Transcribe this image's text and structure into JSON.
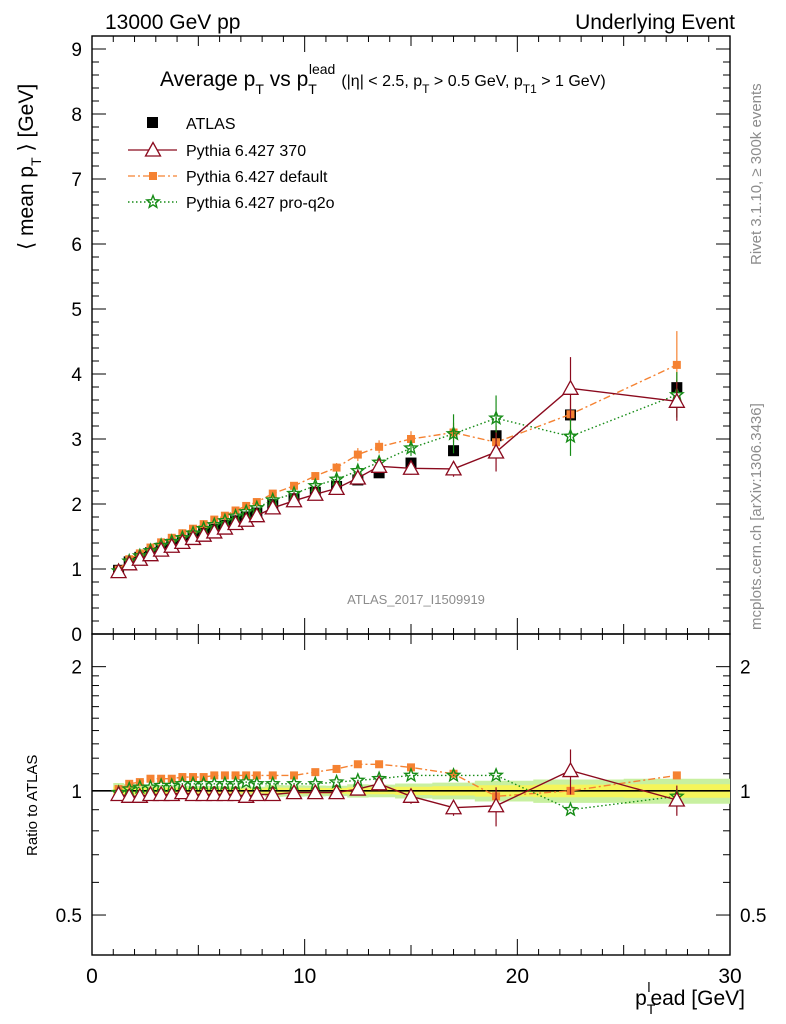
{
  "header": {
    "left": "13000 GeV pp",
    "right": "Underlying Event"
  },
  "title": {
    "main": "Average p",
    "main_sub": "T",
    "vs": " vs p",
    "vs_sub": "T",
    "vs_sup": "lead",
    "cuts": "(|η| < 2.5, p",
    "cuts_sub1": "T",
    "cuts_mid": " > 0.5 GeV, p",
    "cuts_sub2": "T1",
    "cuts_end": " > 1 GeV)"
  },
  "side_labels": {
    "rivet": "Rivet 3.1.10, ≥ 300k events",
    "mcplots": "mcplots.cern.ch [arXiv:1306.3436]"
  },
  "analysis_id": "ATLAS_2017_I1509919",
  "colors": {
    "atlas": "#000000",
    "p370": "#8b0a1e",
    "default": "#f58232",
    "proq2o": "#178c17",
    "band_inner": "#f5f55a",
    "band_outer": "#c8f0a0"
  },
  "chart_data": {
    "type": "scatter",
    "x": [
      1.25,
      1.75,
      2.25,
      2.75,
      3.25,
      3.75,
      4.25,
      4.75,
      5.25,
      5.75,
      6.25,
      6.75,
      7.25,
      7.75,
      8.5,
      9.5,
      10.5,
      11.5,
      12.5,
      13.5,
      15.0,
      17.0,
      19.0,
      22.5,
      27.5
    ],
    "xlabel": "p",
    "xlabel_sub": "T",
    "xlabel_sup": "l",
    "xlabel_rest": "ead [GeV]",
    "xlim": [
      0,
      30
    ],
    "x_ticks": [
      "0",
      "10",
      "20",
      "30"
    ],
    "main": {
      "ylabel": "⟨ mean p",
      "ylabel_sub": "T",
      "ylabel_rest": " ⟩ [GeV]",
      "ylim": [
        0,
        9.2
      ],
      "y_ticks": [
        "0",
        "1",
        "2",
        "3",
        "4",
        "5",
        "6",
        "7",
        "8",
        "9"
      ],
      "series": [
        {
          "name": "ATLAS",
          "marker": "square",
          "values": [
            0.98,
            1.11,
            1.18,
            1.25,
            1.32,
            1.38,
            1.43,
            1.5,
            1.56,
            1.61,
            1.67,
            1.74,
            1.8,
            1.86,
            1.99,
            2.08,
            2.18,
            2.27,
            2.37,
            2.48,
            2.63,
            2.82,
            3.05,
            3.37,
            3.79
          ],
          "err": [
            0.02,
            0.02,
            0.02,
            0.02,
            0.02,
            0.02,
            0.02,
            0.02,
            0.02,
            0.02,
            0.02,
            0.02,
            0.02,
            0.02,
            0.03,
            0.03,
            0.03,
            0.03,
            0.04,
            0.04,
            0.05,
            0.06,
            0.08,
            0.1,
            0.12
          ]
        },
        {
          "name": "Pythia 6.427 370",
          "marker": "open-triangle",
          "values": [
            0.96,
            1.08,
            1.15,
            1.22,
            1.29,
            1.35,
            1.41,
            1.47,
            1.52,
            1.57,
            1.63,
            1.7,
            1.75,
            1.82,
            1.94,
            2.05,
            2.15,
            2.24,
            2.4,
            2.58,
            2.55,
            2.54,
            2.8,
            3.78,
            3.58
          ],
          "err": [
            0.02,
            0.02,
            0.02,
            0.02,
            0.02,
            0.02,
            0.02,
            0.02,
            0.02,
            0.02,
            0.02,
            0.02,
            0.03,
            0.03,
            0.04,
            0.05,
            0.06,
            0.07,
            0.08,
            0.1,
            0.1,
            0.12,
            0.3,
            0.48,
            0.3
          ]
        },
        {
          "name": "Pythia 6.427 default",
          "marker": "filled-square-small",
          "values": [
            0.99,
            1.15,
            1.24,
            1.33,
            1.41,
            1.48,
            1.55,
            1.62,
            1.69,
            1.76,
            1.82,
            1.9,
            1.97,
            2.03,
            2.16,
            2.28,
            2.43,
            2.56,
            2.76,
            2.88,
            3.0,
            3.1,
            2.95,
            3.38,
            4.14
          ],
          "err": [
            0.02,
            0.02,
            0.02,
            0.02,
            0.02,
            0.02,
            0.02,
            0.02,
            0.02,
            0.02,
            0.03,
            0.03,
            0.03,
            0.03,
            0.04,
            0.05,
            0.06,
            0.07,
            0.1,
            0.1,
            0.12,
            0.15,
            0.25,
            0.25,
            0.52
          ]
        },
        {
          "name": "Pythia 6.427 pro-q2o",
          "marker": "star",
          "values": [
            0.97,
            1.12,
            1.2,
            1.28,
            1.36,
            1.42,
            1.48,
            1.55,
            1.62,
            1.68,
            1.74,
            1.81,
            1.88,
            1.94,
            2.06,
            2.16,
            2.28,
            2.38,
            2.51,
            2.64,
            2.86,
            3.08,
            3.32,
            3.04,
            3.68
          ],
          "err": [
            0.02,
            0.02,
            0.02,
            0.02,
            0.02,
            0.02,
            0.02,
            0.02,
            0.02,
            0.02,
            0.02,
            0.02,
            0.03,
            0.03,
            0.04,
            0.05,
            0.06,
            0.07,
            0.08,
            0.1,
            0.12,
            0.3,
            0.35,
            0.3,
            0.35
          ]
        }
      ]
    },
    "ratio": {
      "ylabel": "Ratio to ATLAS",
      "ylim": [
        0.4,
        2.4
      ],
      "log_scale": true,
      "y_ticks": [
        "0.5",
        "1",
        "2"
      ],
      "series": [
        {
          "name": "Pythia 6.427 370",
          "values": [
            0.98,
            0.97,
            0.97,
            0.98,
            0.98,
            0.98,
            0.99,
            0.98,
            0.98,
            0.98,
            0.98,
            0.98,
            0.97,
            0.98,
            0.98,
            0.99,
            0.99,
            0.99,
            1.01,
            1.04,
            0.97,
            0.91,
            0.92,
            1.12,
            0.95
          ],
          "err": [
            0.01,
            0.01,
            0.01,
            0.01,
            0.01,
            0.01,
            0.01,
            0.01,
            0.01,
            0.01,
            0.01,
            0.01,
            0.01,
            0.01,
            0.02,
            0.02,
            0.02,
            0.03,
            0.03,
            0.04,
            0.04,
            0.04,
            0.1,
            0.14,
            0.08
          ]
        },
        {
          "name": "Pythia 6.427 default",
          "values": [
            1.01,
            1.04,
            1.05,
            1.07,
            1.07,
            1.07,
            1.08,
            1.08,
            1.08,
            1.09,
            1.09,
            1.09,
            1.09,
            1.09,
            1.09,
            1.09,
            1.11,
            1.13,
            1.16,
            1.16,
            1.14,
            1.1,
            0.97,
            1.0,
            1.09
          ]
        },
        {
          "name": "Pythia 6.427 pro-q2o",
          "values": [
            0.99,
            1.01,
            1.02,
            1.02,
            1.03,
            1.03,
            1.04,
            1.04,
            1.04,
            1.04,
            1.04,
            1.04,
            1.05,
            1.04,
            1.04,
            1.04,
            1.04,
            1.05,
            1.06,
            1.07,
            1.09,
            1.09,
            1.09,
            0.9,
            0.97
          ]
        }
      ]
    },
    "legend_position": "top-left"
  }
}
